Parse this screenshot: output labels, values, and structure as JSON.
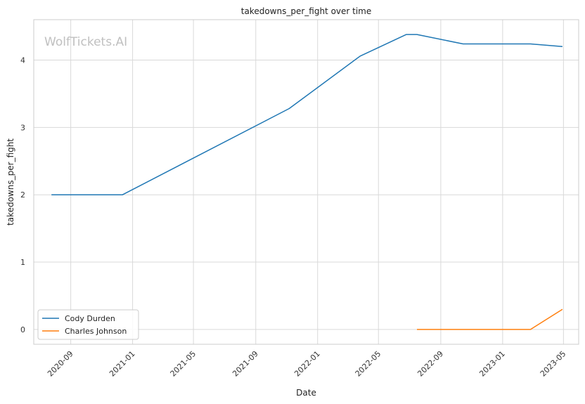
{
  "chart_data": {
    "type": "line",
    "title": "takedowns_per_fight over time",
    "xlabel": "Date",
    "ylabel": "takedowns_per_fight",
    "watermark": "WolfTickets.AI",
    "x_ticks": [
      "2020-09",
      "2021-01",
      "2021-05",
      "2021-09",
      "2022-01",
      "2022-05",
      "2022-09",
      "2023-01",
      "2023-05"
    ],
    "y_ticks": [
      0,
      1,
      2,
      3,
      4
    ],
    "xlim": [
      "2020-06-20",
      "2023-05-31"
    ],
    "ylim": [
      -0.22,
      4.6
    ],
    "grid": true,
    "legend_position": "lower-left",
    "colors": {
      "Cody Durden": "#1f77b4",
      "Charles Johnson": "#ff7f0e"
    },
    "series": [
      {
        "name": "Cody Durden",
        "color": "#1f77b4",
        "points": [
          {
            "x": "2020-07-25",
            "y": 2.0
          },
          {
            "x": "2020-12-12",
            "y": 2.0
          },
          {
            "x": "2021-11-06",
            "y": 3.28
          },
          {
            "x": "2022-03-26",
            "y": 4.06
          },
          {
            "x": "2022-06-25",
            "y": 4.38
          },
          {
            "x": "2022-07-16",
            "y": 4.38
          },
          {
            "x": "2022-10-15",
            "y": 4.24
          },
          {
            "x": "2023-02-25",
            "y": 4.24
          },
          {
            "x": "2023-04-29",
            "y": 4.2
          }
        ]
      },
      {
        "name": "Charles Johnson",
        "color": "#ff7f0e",
        "points": [
          {
            "x": "2022-07-16",
            "y": 0.0
          },
          {
            "x": "2023-02-25",
            "y": 0.0
          },
          {
            "x": "2023-04-29",
            "y": 0.3
          }
        ]
      }
    ]
  }
}
